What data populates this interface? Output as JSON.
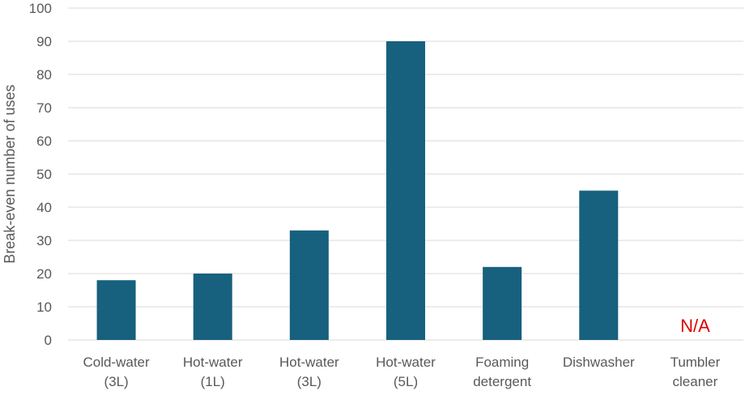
{
  "chart_data": {
    "type": "bar",
    "title": "",
    "xlabel": "",
    "ylabel": "Break-even number of uses",
    "ylim": [
      0,
      100
    ],
    "yticks": [
      0,
      10,
      20,
      30,
      40,
      50,
      60,
      70,
      80,
      90,
      100
    ],
    "grid": true,
    "categories": [
      [
        "Cold-water",
        "(3L)"
      ],
      [
        "Hot-water",
        "(1L)"
      ],
      [
        "Hot-water",
        "(3L)"
      ],
      [
        "Hot-water",
        "(5L)"
      ],
      [
        "Foaming",
        "detergent"
      ],
      [
        "Dishwasher"
      ],
      [
        "Tumbler",
        "cleaner"
      ]
    ],
    "values": [
      18,
      20,
      33,
      90,
      22,
      45,
      null
    ],
    "annotations": [
      {
        "category_index": 6,
        "text": "N/A",
        "color": "#e00000"
      }
    ],
    "bar_color": "#17607e",
    "gridline_color": "#d9d9d9"
  }
}
